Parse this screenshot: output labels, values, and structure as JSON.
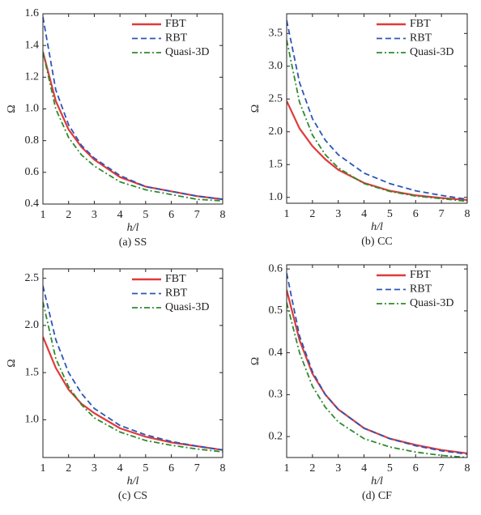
{
  "chart_data": [
    {
      "type": "line",
      "caption": "(a) SS",
      "xlabel": "h/l",
      "ylabel": "Ω",
      "xlim": [
        1,
        8
      ],
      "xticks": [
        1,
        2,
        3,
        4,
        5,
        6,
        7,
        8
      ],
      "ylim": [
        0.4,
        1.6
      ],
      "yticks": [
        0.4,
        0.6,
        0.8,
        {
          "value": 1,
          "label": "1.0"
        },
        1.2,
        1.4,
        1.6
      ],
      "legend": "upper right",
      "x": [
        1,
        1.5,
        2,
        2.5,
        3,
        4,
        5,
        6,
        7,
        8
      ],
      "series": [
        {
          "name": "FBT",
          "color": "#e03a3a",
          "dash": "solid",
          "values": [
            1.36,
            1.05,
            0.87,
            0.76,
            0.68,
            0.57,
            0.51,
            0.48,
            0.45,
            0.43
          ]
        },
        {
          "name": "RBT",
          "color": "#2c55b8",
          "dash": "dashed",
          "values": [
            1.58,
            1.12,
            0.9,
            0.77,
            0.69,
            0.58,
            0.51,
            0.48,
            0.45,
            0.43
          ]
        },
        {
          "name": "Quasi-3D",
          "color": "#2e8a2e",
          "dash": "dashdot",
          "values": [
            1.36,
            1.0,
            0.82,
            0.71,
            0.64,
            0.54,
            0.49,
            0.46,
            0.43,
            0.42
          ]
        }
      ]
    },
    {
      "type": "line",
      "caption": "(b) CC",
      "xlabel": "h/l",
      "ylabel": "Ω",
      "xlim": [
        1,
        8
      ],
      "xticks": [
        1,
        2,
        3,
        4,
        5,
        6,
        7,
        8
      ],
      "ylim": [
        0.91,
        3.8
      ],
      "yticks": [
        {
          "value": 1,
          "label": "1.0"
        },
        1.5,
        {
          "value": 2,
          "label": "2.0"
        },
        2.5,
        {
          "value": 3,
          "label": "3.0"
        },
        3.5
      ],
      "legend": "upper right",
      "x": [
        1,
        1.5,
        2,
        2.5,
        3,
        4,
        5,
        6,
        7,
        8
      ],
      "series": [
        {
          "name": "FBT",
          "color": "#e03a3a",
          "dash": "solid",
          "values": [
            2.47,
            2.05,
            1.78,
            1.58,
            1.42,
            1.22,
            1.1,
            1.03,
            0.99,
            0.96
          ]
        },
        {
          "name": "RBT",
          "color": "#2c55b8",
          "dash": "dashed",
          "values": [
            3.7,
            2.75,
            2.2,
            1.87,
            1.65,
            1.37,
            1.21,
            1.1,
            1.03,
            0.97
          ]
        },
        {
          "name": "Quasi-3D",
          "color": "#2e8a2e",
          "dash": "dashdot",
          "values": [
            3.4,
            2.45,
            1.95,
            1.65,
            1.45,
            1.21,
            1.09,
            1.02,
            0.98,
            0.94
          ]
        }
      ]
    },
    {
      "type": "line",
      "caption": "(c) CS",
      "xlabel": "h/l",
      "ylabel": "Ω",
      "xlim": [
        1,
        8
      ],
      "xticks": [
        1,
        2,
        3,
        4,
        5,
        6,
        7,
        8
      ],
      "ylim": [
        0.6,
        2.6
      ],
      "yticks": [
        {
          "value": 1,
          "label": "1.0"
        },
        1.5,
        {
          "value": 2,
          "label": "2.0"
        },
        2.5
      ],
      "legend": "upper right",
      "x": [
        1,
        1.5,
        2,
        2.5,
        3,
        4,
        5,
        6,
        7,
        8
      ],
      "series": [
        {
          "name": "FBT",
          "color": "#e03a3a",
          "dash": "solid",
          "values": [
            1.88,
            1.55,
            1.32,
            1.17,
            1.07,
            0.91,
            0.82,
            0.76,
            0.72,
            0.68
          ]
        },
        {
          "name": "RBT",
          "color": "#2c55b8",
          "dash": "dashed",
          "values": [
            2.42,
            1.85,
            1.5,
            1.28,
            1.12,
            0.94,
            0.84,
            0.77,
            0.72,
            0.68
          ]
        },
        {
          "name": "Quasi-3D",
          "color": "#2e8a2e",
          "dash": "dashdot",
          "values": [
            2.25,
            1.65,
            1.35,
            1.16,
            1.02,
            0.87,
            0.78,
            0.73,
            0.69,
            0.66
          ]
        }
      ]
    },
    {
      "type": "line",
      "caption": "(d) CF",
      "xlabel": "h/l",
      "ylabel": "Ω",
      "xlim": [
        1,
        8
      ],
      "xticks": [
        1,
        2,
        3,
        4,
        5,
        6,
        7,
        8
      ],
      "ylim": [
        0.15,
        0.61
      ],
      "yticks": [
        0.2,
        0.3,
        0.4,
        0.5,
        0.6
      ],
      "legend": "upper right",
      "x": [
        1,
        1.5,
        2,
        2.5,
        3,
        4,
        5,
        6,
        7,
        8
      ],
      "series": [
        {
          "name": "FBT",
          "color": "#e03a3a",
          "dash": "solid",
          "values": [
            0.55,
            0.43,
            0.35,
            0.3,
            0.265,
            0.22,
            0.195,
            0.18,
            0.168,
            0.16
          ]
        },
        {
          "name": "RBT",
          "color": "#2c55b8",
          "dash": "dashed",
          "values": [
            0.59,
            0.44,
            0.355,
            0.3,
            0.265,
            0.22,
            0.195,
            0.178,
            0.166,
            0.158
          ]
        },
        {
          "name": "Quasi-3D",
          "color": "#2e8a2e",
          "dash": "dashdot",
          "values": [
            0.52,
            0.4,
            0.32,
            0.27,
            0.235,
            0.195,
            0.175,
            0.163,
            0.155,
            0.15
          ]
        }
      ]
    }
  ]
}
